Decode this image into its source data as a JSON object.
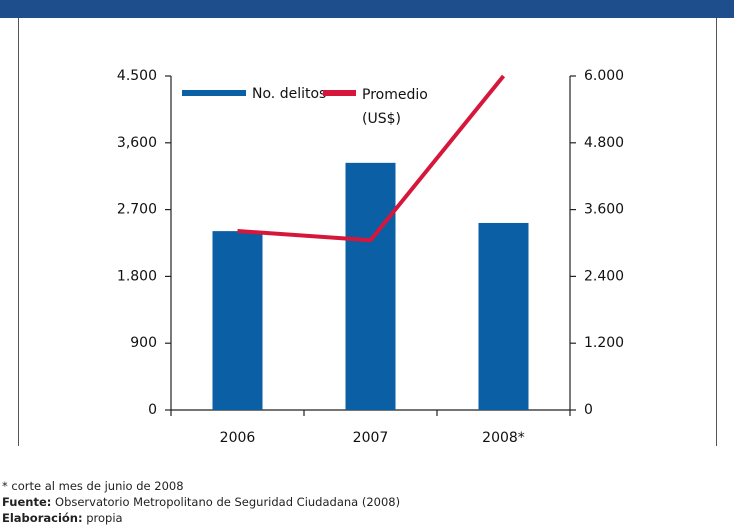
{
  "chart_data": {
    "type": "bar-line",
    "categories": [
      "2006",
      "2007",
      "2008*"
    ],
    "series": [
      {
        "name": "No. delitos",
        "type": "bar",
        "color": "#0b5fa5",
        "values": [
          2410,
          3330,
          2520
        ]
      },
      {
        "name": "Promedio (US$)",
        "type": "line",
        "color": "#d6173b",
        "axis": "y2",
        "values": [
          3215,
          3050,
          6000
        ]
      }
    ],
    "ylim": [
      0,
      4500
    ],
    "yticks": [
      0,
      900,
      {
        "value": 1800,
        "label": "1.800"
      },
      {
        "value": 2700,
        "label": "2.700"
      },
      {
        "value": 3600,
        "label": "3,600"
      },
      {
        "value": 4500,
        "label": "4.500"
      }
    ],
    "y2lim": [
      0,
      6000
    ],
    "y2ticks": [
      0,
      {
        "value": 1200,
        "label": "1.200"
      },
      {
        "value": 2400,
        "label": "2.400"
      },
      {
        "value": 3600,
        "label": "3.600"
      },
      {
        "value": 4800,
        "label": "4.800"
      },
      {
        "value": 6000,
        "label": "6.000"
      }
    ],
    "grid": false
  },
  "notes": {
    "note": "* corte al mes de junio de 2008",
    "source_label": "Fuente:",
    "source": "Observatorio Metropolitano de Seguridad Ciudadana (2008)",
    "credit_label": "Elaboración:",
    "credit": "propia"
  }
}
